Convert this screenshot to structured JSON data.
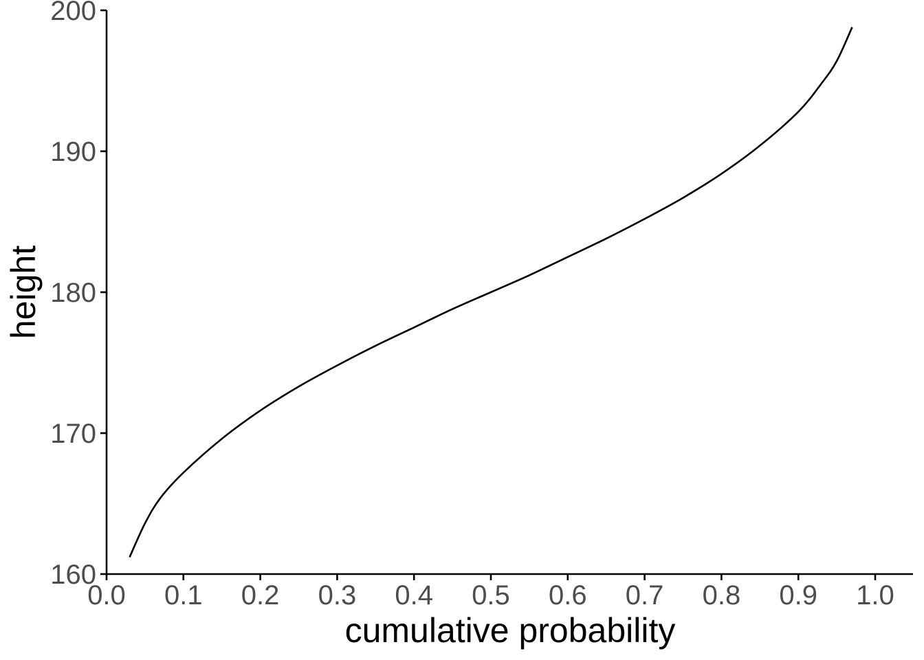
{
  "chart_data": {
    "type": "line",
    "title": "",
    "xlabel": "cumulative probability",
    "ylabel": "height",
    "xlim": [
      0.0,
      1.0
    ],
    "ylim": [
      160,
      200
    ],
    "x_ticks": [
      0.0,
      0.1,
      0.2,
      0.3,
      0.4,
      0.5,
      0.6,
      0.7,
      0.8,
      0.9,
      1.0
    ],
    "x_tick_labels": [
      "0.0",
      "0.1",
      "0.2",
      "0.3",
      "0.4",
      "0.5",
      "0.6",
      "0.7",
      "0.8",
      "0.9",
      "1.0"
    ],
    "y_ticks": [
      160,
      170,
      180,
      190,
      200
    ],
    "y_tick_labels": [
      "160",
      "170",
      "180",
      "190",
      "200"
    ],
    "grid": false,
    "legend": "none",
    "line_color": "#000000",
    "series": [
      {
        "x": [
          0.03,
          0.05,
          0.07,
          0.1,
          0.15,
          0.2,
          0.25,
          0.3,
          0.35,
          0.4,
          0.45,
          0.5,
          0.55,
          0.6,
          0.65,
          0.7,
          0.75,
          0.8,
          0.85,
          0.9,
          0.93,
          0.95,
          0.97
        ],
        "y": [
          161.2,
          163.6,
          165.4,
          167.2,
          169.6,
          171.6,
          173.3,
          174.8,
          176.2,
          177.5,
          178.8,
          180.0,
          181.2,
          182.5,
          183.8,
          185.2,
          186.7,
          188.4,
          190.4,
          192.8,
          194.8,
          196.4,
          198.8
        ]
      }
    ]
  }
}
